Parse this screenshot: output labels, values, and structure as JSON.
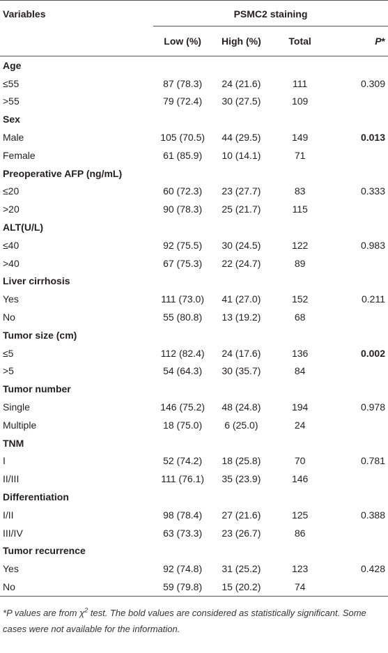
{
  "header": {
    "variables": "Variables",
    "group": "PSMC2 staining",
    "columns": [
      "Low (%)",
      "High (%)",
      "Total"
    ],
    "p_label": "P",
    "p_mark": "*"
  },
  "groups": [
    {
      "name": "Age",
      "rows": [
        {
          "cells": [
            "≤55",
            "87 (78.3)",
            "24 (21.6)",
            "111",
            "0.309"
          ]
        },
        {
          "cells": [
            ">55",
            "79 (72.4)",
            "30 (27.5)",
            "109",
            null
          ]
        }
      ]
    },
    {
      "name": "Sex",
      "rows": [
        {
          "cells": [
            "Male",
            "105 (70.5)",
            "44 (29.5)",
            "149",
            "0.013"
          ],
          "p_bold": true
        },
        {
          "cells": [
            "Female",
            "61 (85.9)",
            "10 (14.1)",
            "71",
            null
          ]
        }
      ]
    },
    {
      "name": "Preoperative AFP (ng/mL)",
      "rows": [
        {
          "cells": [
            "≤20",
            "60 (72.3)",
            "23 (27.7)",
            "83",
            "0.333"
          ]
        },
        {
          "cells": [
            ">20",
            "90 (78.3)",
            "25 (21.7)",
            "115",
            null
          ]
        }
      ]
    },
    {
      "name": "ALT(U/L)",
      "rows": [
        {
          "cells": [
            "≤40",
            "92 (75.5)",
            "30 (24.5)",
            "122",
            "0.983"
          ]
        },
        {
          "cells": [
            ">40",
            "67 (75.3)",
            "22 (24.7)",
            "89",
            null
          ]
        }
      ]
    },
    {
      "name": "Liver cirrhosis",
      "rows": [
        {
          "cells": [
            "Yes",
            "111 (73.0)",
            "41 (27.0)",
            "152",
            "0.211"
          ]
        },
        {
          "cells": [
            "No",
            "55 (80.8)",
            "13 (19.2)",
            "68",
            null
          ]
        }
      ]
    },
    {
      "name": "Tumor size (cm)",
      "rows": [
        {
          "cells": [
            "≤5",
            "112 (82.4)",
            "24 (17.6)",
            "136",
            "0.002"
          ],
          "p_bold": true
        },
        {
          "cells": [
            ">5",
            "54 (64.3)",
            "30 (35.7)",
            "84",
            null
          ]
        }
      ]
    },
    {
      "name": "Tumor number",
      "rows": [
        {
          "cells": [
            "Single",
            "146 (75.2)",
            "48 (24.8)",
            "194",
            "0.978"
          ]
        },
        {
          "cells": [
            "Multiple",
            "18 (75.0)",
            "6 (25.0)",
            "24",
            null
          ]
        }
      ]
    },
    {
      "name": "TNM",
      "rows": [
        {
          "cells": [
            "I",
            "52 (74.2)",
            "18 (25.8)",
            "70",
            "0.781"
          ]
        },
        {
          "cells": [
            "II/III",
            "111 (76.1)",
            "35 (23.9)",
            "146",
            null
          ]
        }
      ]
    },
    {
      "name": "Differentiation",
      "rows": [
        {
          "cells": [
            "I/II",
            "98 (78.4)",
            "27 (21.6)",
            "125",
            "0.388"
          ]
        },
        {
          "cells": [
            "III/IV",
            "63 (73.3)",
            "23 (26.7)",
            "86",
            null
          ]
        }
      ]
    },
    {
      "name": "Tumor recurrence",
      "rows": [
        {
          "cells": [
            "Yes",
            "92 (74.8)",
            "31 (25.2)",
            "123",
            "0.428"
          ]
        },
        {
          "cells": [
            "No",
            "59 (79.8)",
            "15 (20.2)",
            "74",
            null
          ]
        }
      ]
    }
  ],
  "footnote": {
    "parts": [
      "*",
      "P",
      " values are from χ",
      "2",
      " test. The bold values are considered as statistically significant. Some cases were not available for the information."
    ]
  }
}
